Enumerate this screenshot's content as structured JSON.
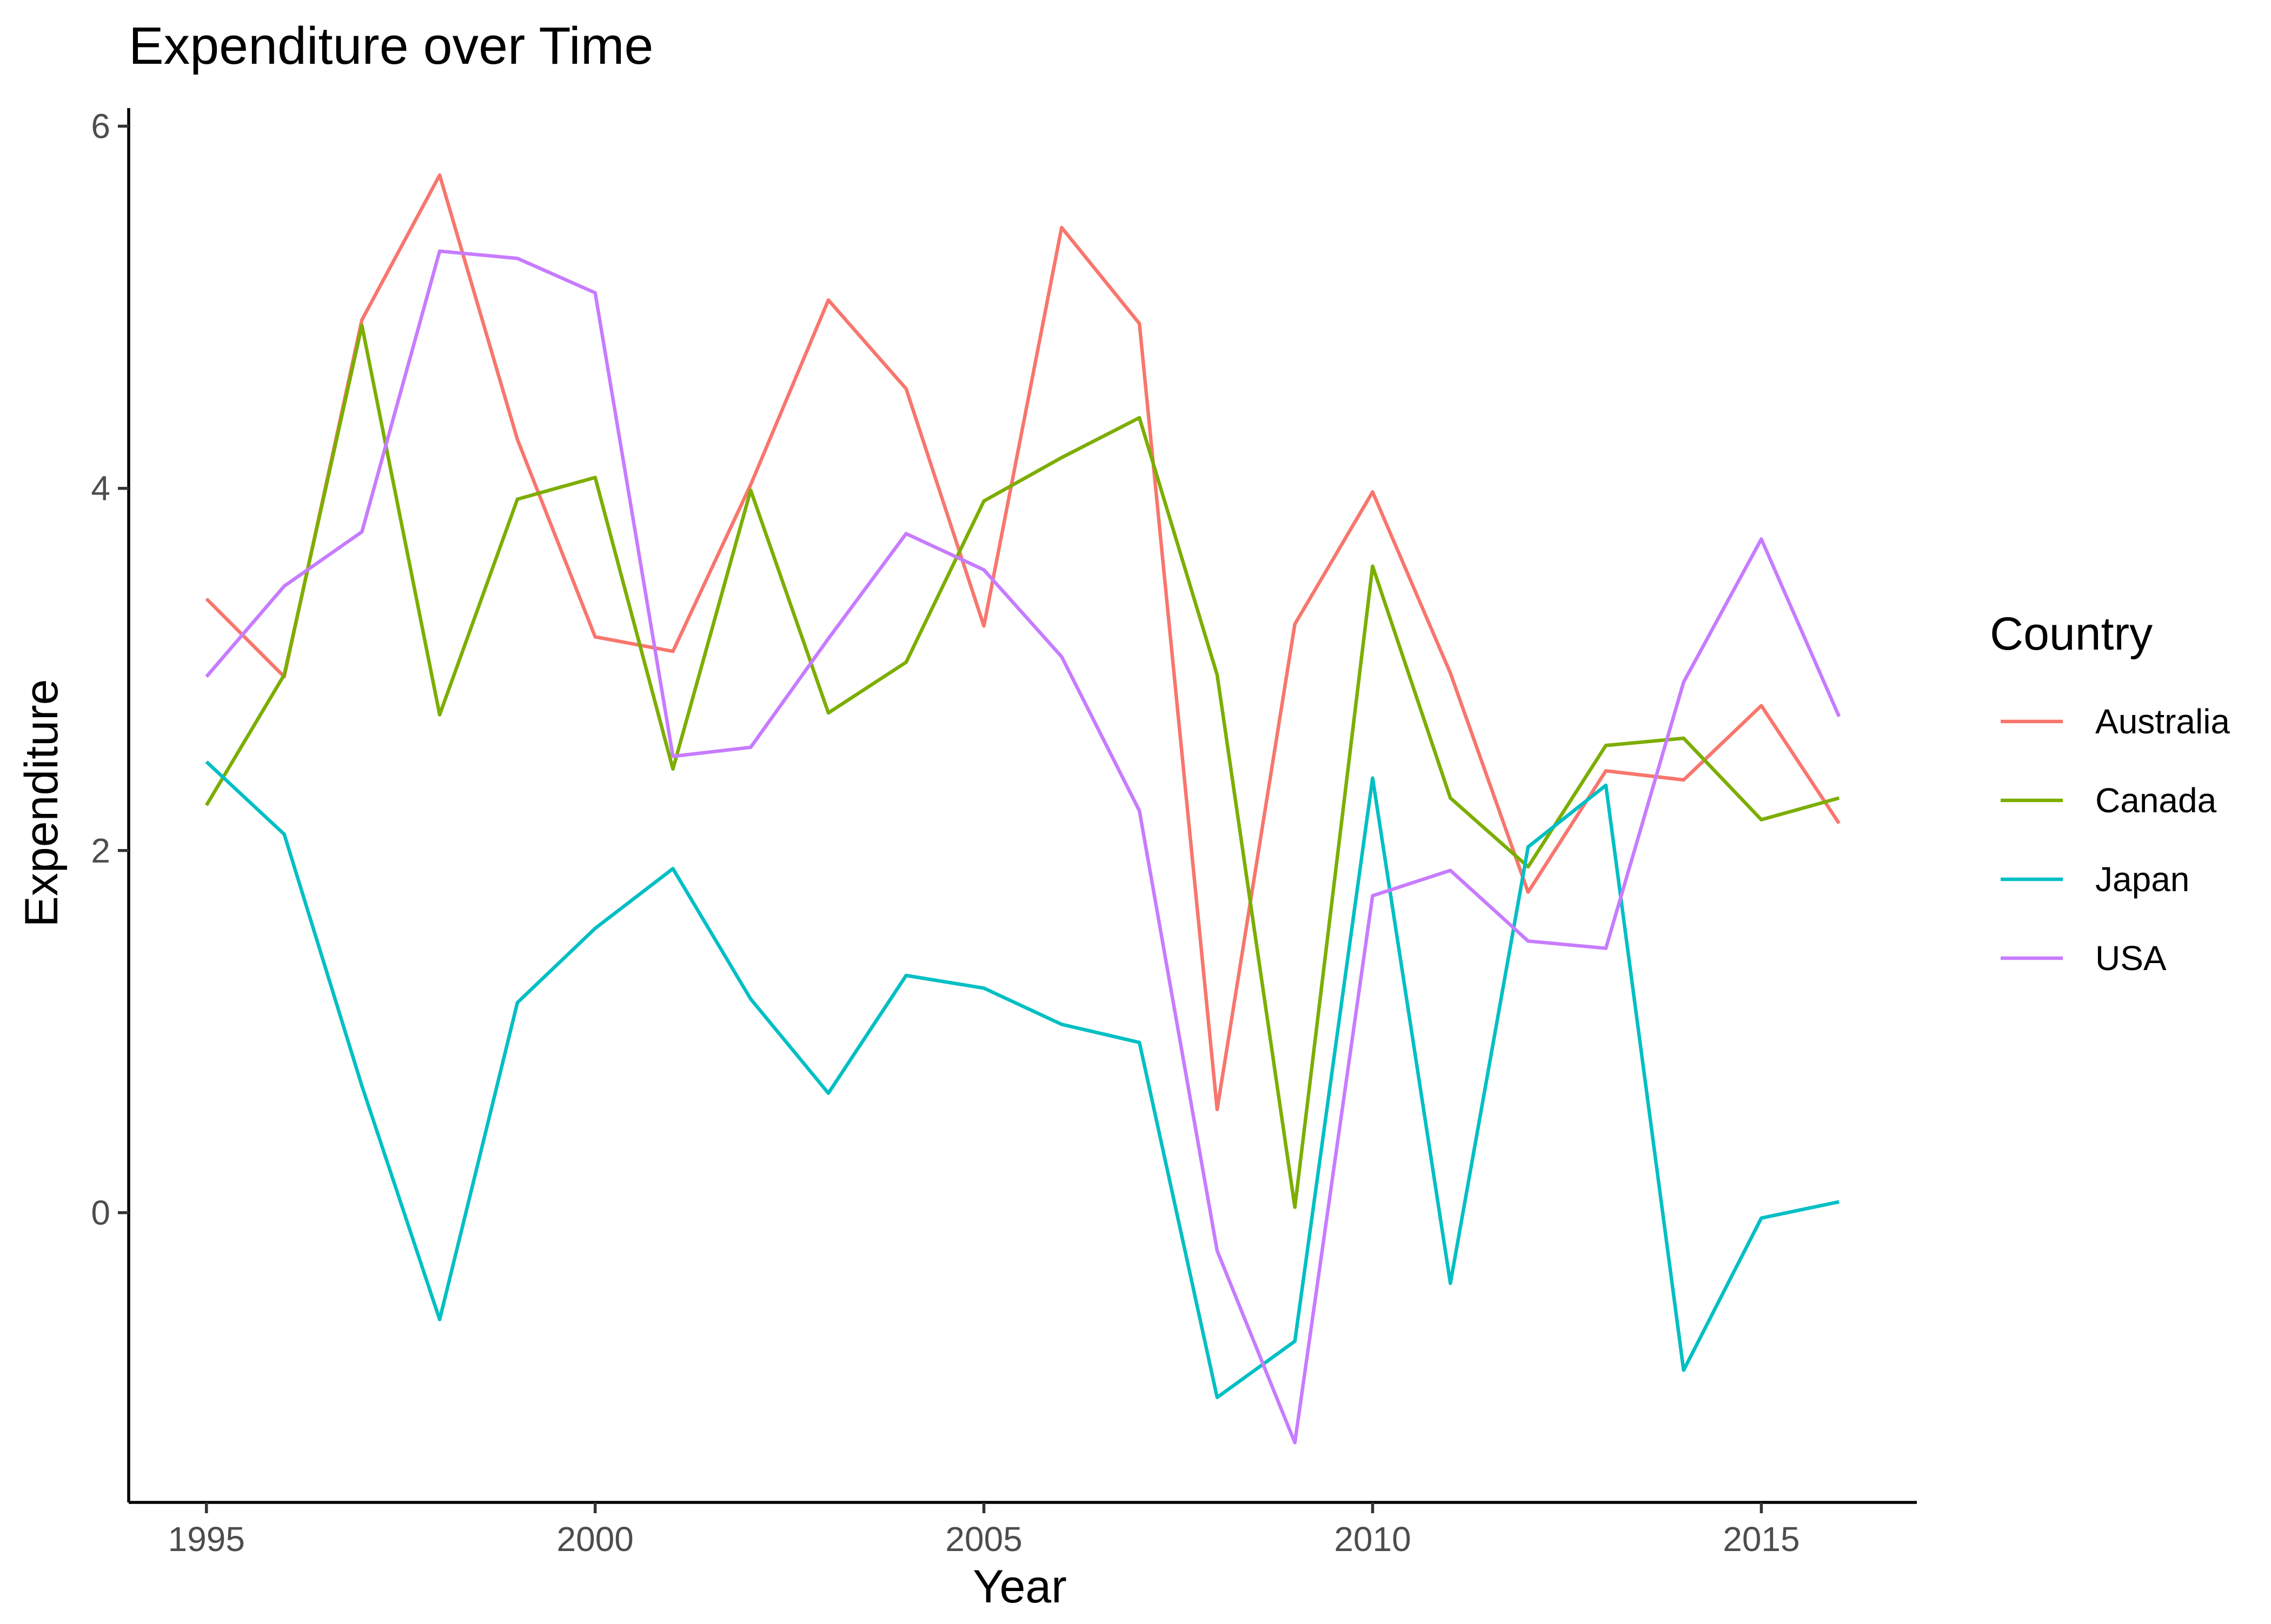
{
  "chart_data": {
    "type": "line",
    "title": "Expenditure over Time",
    "xlabel": "Year",
    "ylabel": "Expenditure",
    "xlim": [
      1994,
      2017
    ],
    "ylim": [
      -1.6,
      6.1
    ],
    "x_ticks": [
      1995,
      2000,
      2005,
      2010,
      2015
    ],
    "y_ticks": [
      0,
      2,
      4,
      6
    ],
    "grid": false,
    "legend": {
      "title": "Country",
      "position": "right"
    },
    "x": [
      1995,
      1996,
      1997,
      1998,
      1999,
      2000,
      2001,
      2002,
      2003,
      2004,
      2005,
      2006,
      2007,
      2008,
      2009,
      2010,
      2011,
      2012,
      2013,
      2014,
      2015,
      2016
    ],
    "series": [
      {
        "name": "Australia",
        "color": "#F8766D",
        "values": [
          3.39,
          2.96,
          4.93,
          5.73,
          4.27,
          3.18,
          3.1,
          4.02,
          5.04,
          4.55,
          3.24,
          5.44,
          4.91,
          0.57,
          3.25,
          3.98,
          2.98,
          1.77,
          2.44,
          2.39,
          2.8,
          2.15
        ]
      },
      {
        "name": "Canada",
        "color": "#7CAE00",
        "values": [
          2.25,
          2.97,
          4.9,
          2.75,
          3.94,
          4.06,
          2.45,
          3.99,
          2.76,
          3.04,
          3.93,
          4.17,
          4.39,
          2.97,
          0.03,
          3.57,
          2.29,
          1.91,
          2.58,
          2.62,
          2.17,
          2.29
        ]
      },
      {
        "name": "Japan",
        "color": "#00BFC4",
        "values": [
          2.49,
          2.09,
          0.7,
          -0.59,
          1.16,
          1.57,
          1.9,
          1.18,
          0.66,
          1.31,
          1.24,
          1.04,
          0.94,
          -1.02,
          -0.71,
          2.4,
          -0.39,
          2.02,
          2.36,
          -0.87,
          -0.03,
          0.06
        ]
      },
      {
        "name": "USA",
        "color": "#C77CFF",
        "values": [
          2.96,
          3.46,
          3.76,
          5.31,
          5.27,
          5.08,
          2.52,
          2.57,
          3.17,
          3.75,
          3.55,
          3.07,
          2.22,
          -0.21,
          -1.27,
          1.75,
          1.89,
          1.5,
          1.46,
          2.93,
          3.72,
          2.74
        ]
      }
    ]
  }
}
